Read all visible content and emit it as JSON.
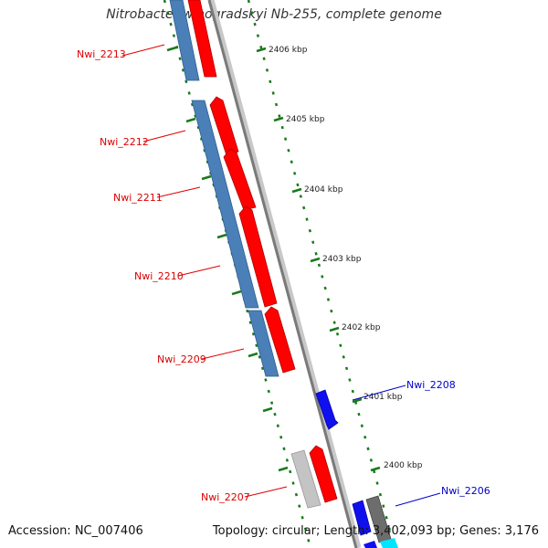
{
  "title": "Nitrobacter winogradskyi Nb-255, complete genome",
  "accession": "Accession: NC_007406",
  "stats": "Topology: circular; Length: 3,402,093 bp; Genes: 3,176",
  "scale_labels": [
    "2406 kbp",
    "2405 kbp",
    "2404 kbp",
    "2403 kbp",
    "2402 kbp",
    "2401 kbp",
    "2400 kbp"
  ],
  "gene_labels": [
    "Nwi_2213",
    "Nwi_2212",
    "Nwi_2211",
    "Nwi_2210",
    "Nwi_2209",
    "Nwi_2207",
    "Nwi_2208",
    "Nwi_2206"
  ],
  "colors": {
    "cog_blue": "#4a7fb8",
    "forward_red": "#ff0000",
    "backbone": "#8a8a8a",
    "tick_green": "#1a7a1a",
    "label_red": "#dd0000",
    "label_blue": "#0000cc"
  }
}
